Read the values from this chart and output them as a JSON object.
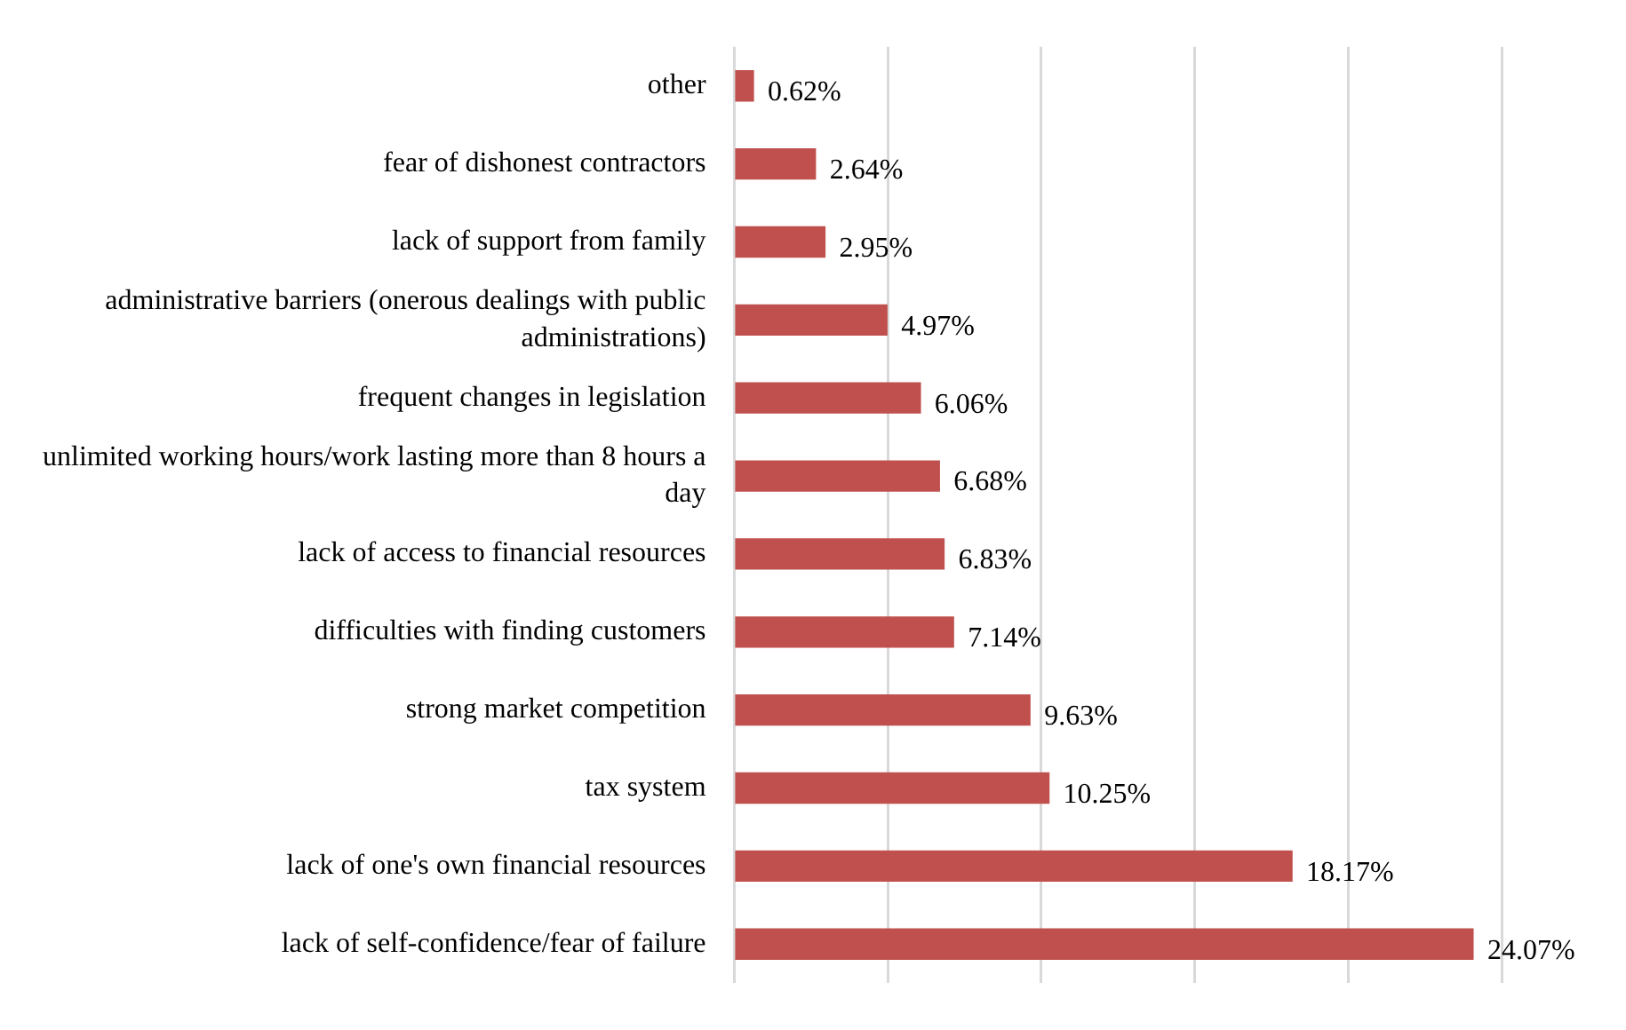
{
  "chart_data": {
    "type": "bar",
    "orientation": "horizontal",
    "categories": [
      "other",
      "fear of dishonest contractors",
      "lack of support from family",
      "administrative barriers (onerous dealings with public administrations)",
      "frequent changes in legislation",
      "unlimited working hours/work lasting more than 8 hours a day",
      "lack of access to financial resources",
      "difficulties with finding customers",
      "strong market competition",
      "tax system",
      "lack of one's own financial resources",
      "lack of self-confidence/fear of failure"
    ],
    "values": [
      0.62,
      2.64,
      2.95,
      4.97,
      6.06,
      6.68,
      6.83,
      7.14,
      9.63,
      10.25,
      18.17,
      24.07
    ],
    "value_labels": [
      "0.62%",
      "2.64%",
      "2.95%",
      "4.97%",
      "6.06%",
      "6.68%",
      "6.83%",
      "7.14%",
      "9.63%",
      "10.25%",
      "18.17%",
      "24.07%"
    ],
    "color": "#c0504d",
    "xlim": [
      0,
      25
    ],
    "xticks": [
      {
        "value": 0,
        "label": null
      },
      {
        "value": 5,
        "label": null
      },
      {
        "value": 10,
        "label": null
      },
      {
        "value": 15,
        "label": null
      },
      {
        "value": 20,
        "label": null
      },
      {
        "value": 25,
        "label": null
      }
    ],
    "grid": "x",
    "legend": false,
    "tick_labels": "y"
  }
}
